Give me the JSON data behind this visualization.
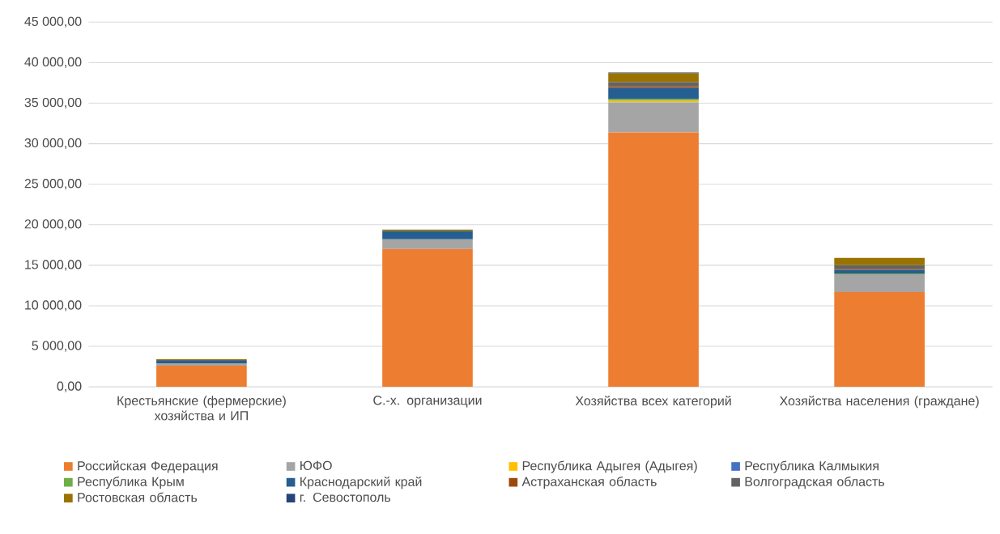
{
  "chart_data": {
    "type": "bar",
    "stacked": true,
    "grid": "y",
    "legend": "bottom",
    "categories": [
      "Крестьянские (фермерские) хозяйства и ИП",
      "С.-х. организации",
      "Хозяйства всех категорий",
      "Хозяйства населения (граждане)"
    ],
    "ylim": [
      0,
      45000
    ],
    "yticks": [
      {
        "value": 0,
        "label": "0,00"
      },
      {
        "value": 5000,
        "label": "5 000,00"
      },
      {
        "value": 10000,
        "label": "10 000,00"
      },
      {
        "value": 15000,
        "label": "15 000,00"
      },
      {
        "value": 20000,
        "label": "20 000,00"
      },
      {
        "value": 25000,
        "label": "25 000,00"
      },
      {
        "value": 30000,
        "label": "30 000,00"
      },
      {
        "value": 35000,
        "label": "35 000,00"
      },
      {
        "value": 40000,
        "label": "40 000,00"
      },
      {
        "value": 45000,
        "label": "45 000,00"
      }
    ],
    "series": [
      {
        "name": "Российская Федерация",
        "color": "#ed7d31",
        "values": [
          2600,
          17000,
          31400,
          11700
        ]
      },
      {
        "name": "ЮФО",
        "color": "#a5a5a5",
        "values": [
          300,
          1200,
          3700,
          2200
        ]
      },
      {
        "name": "Республика Адыгея (Адыгея)",
        "color": "#ffc000",
        "values": [
          null,
          null,
          200,
          null
        ]
      },
      {
        "name": "Республика Калмыкия",
        "color": "#4472c4",
        "values": [
          null,
          null,
          null,
          null
        ]
      },
      {
        "name": "Республика Крым",
        "color": "#70ad47",
        "values": [
          null,
          null,
          200,
          100
        ]
      },
      {
        "name": "Краснодарский край",
        "color": "#255e91",
        "values": [
          300,
          1000,
          1400,
          400
        ]
      },
      {
        "name": "Астраханская область",
        "color": "#9e480e",
        "values": [
          null,
          null,
          200,
          100
        ]
      },
      {
        "name": "Волгоградская область",
        "color": "#636363",
        "values": [
          100,
          null,
          500,
          500
        ]
      },
      {
        "name": "Ростовская область",
        "color": "#997300",
        "values": [
          100,
          200,
          1100,
          900
        ]
      },
      {
        "name": "г. Севостополь",
        "color": "#264478",
        "values": [
          null,
          null,
          100,
          null
        ]
      }
    ]
  }
}
